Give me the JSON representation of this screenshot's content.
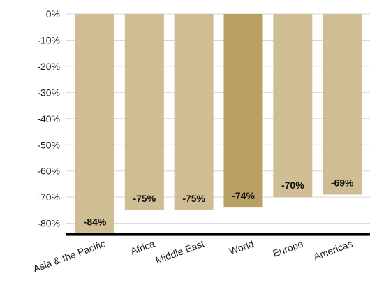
{
  "chart_data": {
    "type": "bar",
    "title": "",
    "xlabel": "",
    "ylabel": "",
    "categories": [
      "Asia & the Pacific",
      "Africa",
      "Middle East",
      "World",
      "Europe",
      "Americas"
    ],
    "values": [
      -84,
      -75,
      -75,
      -74,
      -70,
      -69
    ],
    "value_labels": [
      "-84%",
      "-75%",
      "-75%",
      "-74%",
      "-70%",
      "-69%"
    ],
    "highlight_category": "World",
    "ylim": [
      -84,
      0
    ],
    "yticks": [
      0,
      -10,
      -20,
      -30,
      -40,
      -50,
      -60,
      -70,
      -80
    ],
    "ytick_labels": [
      "0%",
      "-10%",
      "-20%",
      "-30%",
      "-40%",
      "-50%",
      "-60%",
      "-70%",
      "-80%"
    ],
    "grid": true,
    "legend": "none",
    "colors": {
      "bar": "#cfbe93",
      "highlight": "#b89f63",
      "grid": "#d7d7d7",
      "axis": "#000000"
    }
  }
}
